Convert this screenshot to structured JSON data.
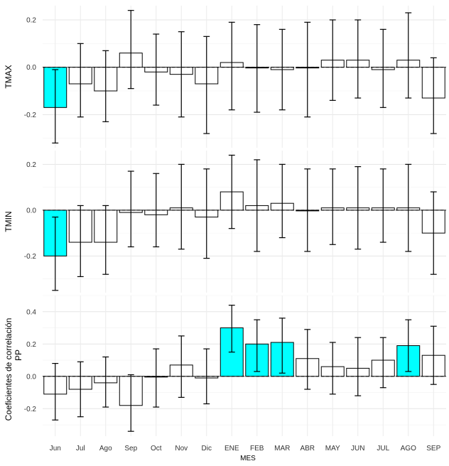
{
  "chart_data": {
    "type": "bar",
    "categories": [
      "Jun",
      "Jul",
      "Ago",
      "Sep",
      "Oct",
      "Nov",
      "Dic",
      "ENE",
      "FEB",
      "MAR",
      "ABR",
      "MAY",
      "JUN",
      "JUL",
      "AGO",
      "SEP"
    ],
    "xlabel": "MES",
    "ylabel": "Coeficientes de correlación",
    "highlight_color": "#00FFFF",
    "bar_color": "#FFFFFF",
    "panels": [
      {
        "name": "TMAX",
        "ylim": [
          -0.34,
          0.26
        ],
        "yticks": [
          -0.2,
          0.0,
          0.2
        ],
        "ytick_labels": [
          "-0.2",
          "0.0",
          "0.2"
        ],
        "values": [
          -0.17,
          -0.07,
          -0.1,
          0.06,
          -0.02,
          -0.03,
          -0.07,
          0.02,
          0.0,
          -0.01,
          0.0,
          0.03,
          0.03,
          -0.01,
          0.03,
          -0.13
        ],
        "err_low": [
          -0.32,
          -0.21,
          -0.23,
          -0.09,
          -0.16,
          -0.21,
          -0.28,
          -0.18,
          -0.19,
          -0.18,
          -0.21,
          -0.14,
          -0.13,
          -0.17,
          -0.13,
          -0.28
        ],
        "err_high": [
          -0.01,
          0.1,
          0.07,
          0.24,
          0.14,
          0.15,
          0.13,
          0.19,
          0.18,
          0.16,
          0.19,
          0.2,
          0.2,
          0.16,
          0.23,
          0.04
        ],
        "highlight": [
          true,
          false,
          false,
          false,
          false,
          false,
          false,
          false,
          false,
          false,
          false,
          false,
          false,
          false,
          false,
          false
        ]
      },
      {
        "name": "TMIN",
        "ylim": [
          -0.36,
          0.26
        ],
        "yticks": [
          -0.2,
          0.0,
          0.2
        ],
        "ytick_labels": [
          "-0.2",
          "0.0",
          "0.2"
        ],
        "values": [
          -0.2,
          -0.14,
          -0.14,
          -0.01,
          -0.02,
          0.01,
          -0.03,
          0.08,
          0.02,
          0.03,
          0.0,
          0.01,
          0.01,
          0.01,
          0.01,
          -0.1
        ],
        "err_low": [
          -0.35,
          -0.29,
          -0.28,
          -0.16,
          -0.16,
          -0.17,
          -0.21,
          -0.08,
          -0.18,
          -0.12,
          -0.18,
          -0.15,
          -0.17,
          -0.14,
          -0.18,
          -0.28
        ],
        "err_high": [
          -0.03,
          0.02,
          0.02,
          0.17,
          0.16,
          0.2,
          0.18,
          0.24,
          0.22,
          0.2,
          0.18,
          0.18,
          0.19,
          0.18,
          0.2,
          0.08
        ],
        "highlight": [
          true,
          false,
          false,
          false,
          false,
          false,
          false,
          false,
          false,
          false,
          false,
          false,
          false,
          false,
          false,
          false
        ]
      },
      {
        "name": "PP",
        "ylim": [
          -0.37,
          0.5
        ],
        "yticks": [
          -0.2,
          0.0,
          0.2,
          0.4
        ],
        "ytick_labels": [
          "-0.2",
          "0.0",
          "0.2",
          "0.4"
        ],
        "values": [
          -0.11,
          -0.08,
          -0.04,
          -0.18,
          0.0,
          0.07,
          -0.01,
          0.3,
          0.2,
          0.21,
          0.11,
          0.06,
          0.05,
          0.1,
          0.19,
          0.13
        ],
        "err_low": [
          -0.27,
          -0.25,
          -0.19,
          -0.34,
          -0.19,
          -0.13,
          -0.17,
          0.15,
          0.03,
          0.02,
          -0.08,
          -0.11,
          -0.12,
          -0.07,
          0.03,
          -0.05
        ],
        "err_high": [
          0.08,
          0.09,
          0.12,
          0.01,
          0.17,
          0.25,
          0.17,
          0.44,
          0.35,
          0.36,
          0.29,
          0.21,
          0.24,
          0.24,
          0.35,
          0.31
        ],
        "highlight": [
          false,
          false,
          false,
          false,
          false,
          false,
          false,
          true,
          true,
          true,
          false,
          false,
          false,
          false,
          true,
          false
        ]
      }
    ]
  }
}
